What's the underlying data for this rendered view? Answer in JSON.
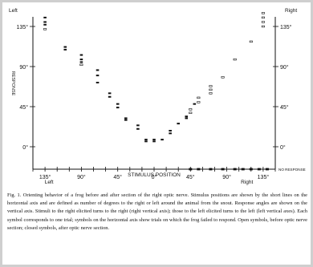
{
  "chart_data": {
    "type": "scatter",
    "xlabel": "STIMULUS POSITION",
    "ylabel": "RESPONSE",
    "xlim": [
      -150,
      150
    ],
    "ylim": [
      -10,
      150
    ],
    "x_ticks": [
      {
        "value": -135,
        "label": "135°"
      },
      {
        "value": -90,
        "label": "90°"
      },
      {
        "value": -45,
        "label": "45°"
      },
      {
        "value": 0,
        "label": "0°"
      },
      {
        "value": 45,
        "label": "45°"
      },
      {
        "value": 90,
        "label": "90°"
      },
      {
        "value": 135,
        "label": "135°"
      }
    ],
    "y_ticks_left": [
      {
        "value": 135,
        "label": "135°"
      },
      {
        "value": 90,
        "label": "90°"
      },
      {
        "value": 45,
        "label": "45°"
      },
      {
        "value": 0,
        "label": "0°"
      }
    ],
    "y_ticks_right": [
      {
        "value": 135,
        "label": "135°"
      },
      {
        "value": 90,
        "label": "90°"
      },
      {
        "value": 45,
        "label": "45°"
      },
      {
        "value": 0,
        "label": "0°"
      }
    ],
    "corner_labels": {
      "left": "Left",
      "right": "Right"
    },
    "x_side_labels": {
      "left": "Left",
      "right": "Right"
    },
    "no_response_label": "NO RESPONSE",
    "series": [
      {
        "points": [
          [
            -135,
            145
          ],
          [
            -135,
            140
          ],
          [
            -135,
            137
          ],
          [
            -110,
            112
          ],
          [
            -110,
            109
          ],
          [
            -90,
            103
          ],
          [
            -90,
            98
          ],
          [
            -90,
            95
          ],
          [
            -70,
            86
          ],
          [
            -70,
            80
          ],
          [
            -70,
            72
          ],
          [
            -55,
            60
          ],
          [
            -55,
            56
          ],
          [
            -45,
            48
          ],
          [
            -45,
            44
          ],
          [
            -35,
            32
          ],
          [
            -35,
            30
          ],
          [
            -20,
            24
          ],
          [
            -20,
            20
          ],
          [
            -10,
            8
          ],
          [
            -10,
            6
          ],
          [
            0,
            6
          ],
          [
            0,
            8
          ],
          [
            10,
            8
          ],
          [
            20,
            18
          ],
          [
            20,
            15
          ],
          [
            30,
            26
          ],
          [
            40,
            32
          ],
          [
            40,
            34
          ],
          [
            50,
            48
          ]
        ]
      },
      {
        "points": [
          [
            -135,
            132
          ],
          [
            -90,
            92
          ],
          [
            45,
            38
          ],
          [
            45,
            42
          ],
          [
            55,
            50
          ],
          [
            55,
            55
          ],
          [
            70,
            60
          ],
          [
            70,
            64
          ],
          [
            70,
            68
          ],
          [
            85,
            78
          ],
          [
            100,
            98
          ],
          [
            120,
            118
          ],
          [
            135,
            135
          ],
          [
            135,
            140
          ],
          [
            135,
            145
          ],
          [
            135,
            150
          ]
        ]
      }
    ],
    "no_response_x": [
      45,
      55,
      70,
      85,
      100,
      110,
      120,
      130,
      140
    ]
  },
  "caption": {
    "text": "Fig. 1. Orienting behavior of a frog before and after section of the right optic nerve. Stimulus positions are shown by the short lines on the horizontal axis and are defined as number of degrees to the right or left around the animal from the snout. Response angles are shown on the vertical axis. Stimuli to the right elicited turns to the right (right vertical axis); those to the left elicited turns to the left (left vertical axes). Each symbol corresponds to one trial; symbols on the horizontal axis show trials on which the frog failed to respond. Open symbols, before optic nerve section; closed symbols, after optic nerve section."
  }
}
